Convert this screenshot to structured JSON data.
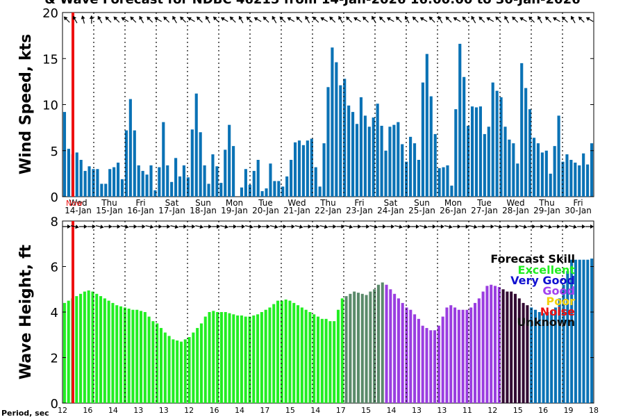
{
  "chart_data": {
    "type": "bar",
    "title": "& Wave Forecast for NDBC 46215 from 14-Jan-2026 16:00:00 to 30-Jan-2026",
    "now_label": "Now",
    "days": [
      {
        "dow": "Wed",
        "date": "14-Jan"
      },
      {
        "dow": "Thu",
        "date": "15-Jan"
      },
      {
        "dow": "Fri",
        "date": "16-Jan"
      },
      {
        "dow": "Sat",
        "date": "17-Jan"
      },
      {
        "dow": "Sun",
        "date": "18-Jan"
      },
      {
        "dow": "Mon",
        "date": "19-Jan"
      },
      {
        "dow": "Tue",
        "date": "20-Jan"
      },
      {
        "dow": "Wed",
        "date": "21-Jan"
      },
      {
        "dow": "Thu",
        "date": "22-Jan"
      },
      {
        "dow": "Fri",
        "date": "23-Jan"
      },
      {
        "dow": "Sat",
        "date": "24-Jan"
      },
      {
        "dow": "Sun",
        "date": "25-Jan"
      },
      {
        "dow": "Mon",
        "date": "26-Jan"
      },
      {
        "dow": "Tue",
        "date": "27-Jan"
      },
      {
        "dow": "Wed",
        "date": "28-Jan"
      },
      {
        "dow": "Thu",
        "date": "29-Jan"
      },
      {
        "dow": "Fri",
        "date": "30-Jan"
      }
    ],
    "wind": {
      "ylabel": "Wind Speed, kts",
      "ylim": [
        0,
        20
      ],
      "yticks": [
        0,
        5,
        10,
        15,
        20
      ],
      "color": "#0a72b5",
      "values": [
        9.2,
        5.2,
        4.6,
        4.8,
        4.0,
        2.8,
        3.3,
        3.0,
        3.0,
        1.4,
        1.4,
        3.0,
        3.2,
        3.7,
        1.9,
        7.2,
        10.6,
        7.2,
        3.4,
        2.8,
        2.4,
        3.4,
        0.7,
        3.2,
        8.1,
        3.4,
        1.6,
        4.2,
        2.2,
        3.4,
        2.1,
        7.3,
        11.2,
        7.0,
        3.4,
        1.4,
        4.6,
        3.3,
        1.5,
        5.1,
        7.8,
        5.5,
        0.0,
        1.0,
        3.0,
        1.3,
        2.8,
        4.0,
        0.6,
        0.9,
        3.6,
        1.7,
        1.7,
        1.1,
        2.2,
        4.0,
        5.9,
        6.1,
        5.6,
        6.1,
        6.3,
        3.2,
        1.1,
        5.8,
        11.9,
        16.2,
        14.6,
        12.1,
        12.8,
        9.9,
        9.2,
        7.9,
        10.8,
        8.8,
        7.6,
        8.6,
        10.1,
        7.7,
        5.0,
        7.6,
        7.8,
        8.1,
        5.7,
        3.8,
        6.5,
        5.8,
        4.0,
        12.4,
        15.5,
        10.9,
        6.8,
        3.1,
        3.2,
        3.4,
        1.2,
        9.5,
        16.6,
        13.0,
        7.7,
        9.8,
        9.7,
        9.8,
        6.8,
        7.6,
        12.4,
        11.5,
        10.8,
        7.6,
        6.2,
        5.8,
        3.6,
        14.5,
        11.8,
        9.5,
        6.4,
        5.8,
        4.8,
        5.0,
        2.5,
        5.5,
        8.8,
        3.8,
        4.6,
        4.0,
        3.7,
        3.4,
        4.7,
        3.5,
        5.8
      ],
      "direction_arrows_deg": [
        225,
        240,
        255,
        270,
        240,
        225,
        225,
        210,
        225,
        240,
        225,
        210,
        225,
        240,
        225,
        210,
        225,
        240,
        225,
        210,
        225,
        240,
        225,
        210,
        225,
        240,
        225,
        210,
        225,
        240,
        225,
        210,
        225,
        240,
        225,
        210,
        225,
        240,
        225,
        210,
        225,
        240,
        225,
        210,
        225,
        240,
        225,
        210,
        225,
        240,
        225,
        210,
        225,
        240,
        225,
        210,
        225,
        240,
        225,
        210,
        225,
        240,
        225,
        210
      ]
    },
    "wave": {
      "ylabel": "Wave Height, ft",
      "ylim": [
        0,
        8
      ],
      "yticks": [
        0,
        2,
        4,
        6,
        8
      ],
      "values": [
        4.4,
        4.5,
        4.6,
        4.7,
        4.8,
        4.9,
        4.95,
        4.9,
        4.8,
        4.7,
        4.6,
        4.5,
        4.4,
        4.3,
        4.25,
        4.2,
        4.15,
        4.1,
        4.1,
        4.05,
        4.0,
        3.8,
        3.6,
        3.5,
        3.3,
        3.1,
        2.95,
        2.8,
        2.75,
        2.7,
        2.8,
        2.9,
        3.1,
        3.3,
        3.5,
        3.8,
        4.0,
        4.05,
        4.0,
        4.0,
        4.0,
        3.95,
        3.9,
        3.85,
        3.85,
        3.8,
        3.8,
        3.85,
        3.9,
        4.0,
        4.1,
        4.2,
        4.35,
        4.5,
        4.5,
        4.55,
        4.5,
        4.4,
        4.3,
        4.2,
        4.1,
        4.0,
        3.9,
        3.8,
        3.7,
        3.7,
        3.6,
        3.6,
        4.1,
        4.6,
        4.7,
        4.8,
        4.9,
        4.85,
        4.8,
        4.75,
        4.9,
        5.0,
        5.2,
        5.3,
        5.2,
        5.0,
        4.8,
        4.6,
        4.4,
        4.2,
        4.1,
        3.9,
        3.7,
        3.4,
        3.3,
        3.2,
        3.2,
        3.4,
        3.8,
        4.2,
        4.3,
        4.2,
        4.1,
        4.1,
        4.1,
        4.2,
        4.4,
        4.6,
        4.9,
        5.15,
        5.2,
        5.15,
        5.1,
        5.0,
        4.9,
        4.9,
        4.8,
        4.6,
        4.4,
        4.3,
        4.2,
        4.1,
        4.0,
        3.95,
        4.0,
        4.05,
        4.2,
        4.6,
        5.2,
        5.8,
        6.3,
        6.3,
        6.3,
        6.3,
        6.3,
        6.35
      ],
      "skill_breaks": [
        {
          "upto": 70,
          "color": "#22ee22"
        },
        {
          "upto": 80,
          "color": "#5a8a6a"
        },
        {
          "upto": 85,
          "color": "#9a3de0"
        },
        {
          "upto": 109,
          "color": "#9a3de0"
        },
        {
          "upto": 116,
          "color": "#330a33"
        },
        {
          "upto": 130,
          "color": "#0a72b5"
        }
      ]
    },
    "legend": {
      "title": "Forecast Skill",
      "entries": [
        {
          "label": "Excellent",
          "color": "#22ee22"
        },
        {
          "label": "Very Good",
          "color": "#1010d0"
        },
        {
          "label": "Good",
          "color": "#a040f0"
        },
        {
          "label": "Poor",
          "color": "#f2d10e"
        },
        {
          "label": "Noise",
          "color": "#ee1111"
        },
        {
          "label": "Unknown",
          "color": "#111111"
        }
      ]
    },
    "period_label": "Period, sec",
    "period_values": [
      "12",
      "16",
      "14",
      "13",
      "13",
      "12",
      "16",
      "14",
      "17",
      "15",
      "14",
      "17",
      "15",
      "14",
      "13",
      "13",
      "11",
      "12",
      "15",
      "16",
      "19",
      "18"
    ]
  }
}
